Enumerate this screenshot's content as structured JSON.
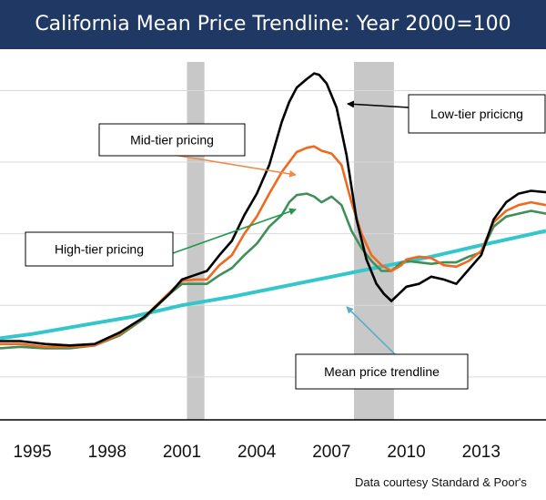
{
  "chart_data": {
    "type": "line",
    "title": "California Mean Price Trendline: Year 2000=100",
    "credit": "Data courtesy Standard & Poor's",
    "x_ticks": [
      "1995",
      "1998",
      "2001",
      "2004",
      "2007",
      "2010",
      "2013"
    ],
    "x_range": [
      1993.7,
      2015.6
    ],
    "y_range": [
      20,
      270
    ],
    "grid": true,
    "shaded_periods": [
      [
        2001.2,
        2001.9
      ],
      [
        2007.9,
        2009.5
      ]
    ],
    "series": [
      {
        "name": "Low-tier pricicng",
        "color": "#000000",
        "points": [
          [
            1993.7,
            75
          ],
          [
            1994.5,
            75
          ],
          [
            1995.5,
            73
          ],
          [
            1996.5,
            72
          ],
          [
            1997.5,
            73
          ],
          [
            1998.5,
            81
          ],
          [
            1999.5,
            92
          ],
          [
            2000.5,
            108
          ],
          [
            2001.0,
            118
          ],
          [
            2001.5,
            121
          ],
          [
            2002.0,
            124
          ],
          [
            2002.5,
            135
          ],
          [
            2003.0,
            145
          ],
          [
            2003.5,
            163
          ],
          [
            2004.0,
            178
          ],
          [
            2004.5,
            198
          ],
          [
            2005.0,
            228
          ],
          [
            2005.3,
            242
          ],
          [
            2005.6,
            252
          ],
          [
            2006.0,
            258
          ],
          [
            2006.3,
            262
          ],
          [
            2006.5,
            261
          ],
          [
            2006.8,
            255
          ],
          [
            2007.2,
            238
          ],
          [
            2007.6,
            205
          ],
          [
            2008.0,
            160
          ],
          [
            2008.4,
            132
          ],
          [
            2008.8,
            115
          ],
          [
            2009.1,
            108
          ],
          [
            2009.4,
            103
          ],
          [
            2009.7,
            108
          ],
          [
            2010.0,
            113
          ],
          [
            2010.5,
            115
          ],
          [
            2011.0,
            120
          ],
          [
            2011.5,
            118
          ],
          [
            2012.0,
            115
          ],
          [
            2012.5,
            125
          ],
          [
            2013.0,
            135
          ],
          [
            2013.5,
            160
          ],
          [
            2014.0,
            172
          ],
          [
            2014.5,
            178
          ],
          [
            2015.0,
            180
          ],
          [
            2015.6,
            179
          ]
        ]
      },
      {
        "name": "Mid-tier pricing",
        "color": "#ef6a1e",
        "points": [
          [
            1993.7,
            73
          ],
          [
            1994.5,
            73
          ],
          [
            1995.5,
            71
          ],
          [
            1996.5,
            71
          ],
          [
            1997.5,
            72
          ],
          [
            1998.5,
            80
          ],
          [
            1999.5,
            92
          ],
          [
            2000.5,
            109
          ],
          [
            2001.0,
            117
          ],
          [
            2001.5,
            118
          ],
          [
            2002.0,
            118
          ],
          [
            2002.5,
            128
          ],
          [
            2003.0,
            135
          ],
          [
            2003.5,
            150
          ],
          [
            2004.0,
            162
          ],
          [
            2004.5,
            178
          ],
          [
            2005.0,
            193
          ],
          [
            2005.3,
            200
          ],
          [
            2005.6,
            207
          ],
          [
            2006.0,
            210
          ],
          [
            2006.3,
            211
          ],
          [
            2006.6,
            208
          ],
          [
            2007.0,
            206
          ],
          [
            2007.4,
            198
          ],
          [
            2007.8,
            172
          ],
          [
            2008.2,
            150
          ],
          [
            2008.6,
            135
          ],
          [
            2009.0,
            128
          ],
          [
            2009.4,
            124
          ],
          [
            2009.8,
            128
          ],
          [
            2010.0,
            132
          ],
          [
            2010.5,
            134
          ],
          [
            2011.0,
            133
          ],
          [
            2011.5,
            128
          ],
          [
            2012.0,
            127
          ],
          [
            2012.5,
            131
          ],
          [
            2013.0,
            138
          ],
          [
            2013.5,
            158
          ],
          [
            2014.0,
            166
          ],
          [
            2014.5,
            170
          ],
          [
            2015.0,
            172
          ],
          [
            2015.6,
            170
          ]
        ]
      },
      {
        "name": "High-tier pricing",
        "color": "#3f8f5a",
        "points": [
          [
            1993.7,
            70
          ],
          [
            1994.5,
            71
          ],
          [
            1995.5,
            70
          ],
          [
            1996.5,
            70
          ],
          [
            1997.5,
            72
          ],
          [
            1998.5,
            79
          ],
          [
            1999.5,
            91
          ],
          [
            2000.5,
            108
          ],
          [
            2001.0,
            115
          ],
          [
            2001.5,
            115
          ],
          [
            2002.0,
            115
          ],
          [
            2002.5,
            121
          ],
          [
            2003.0,
            126
          ],
          [
            2003.5,
            135
          ],
          [
            2004.0,
            143
          ],
          [
            2004.5,
            155
          ],
          [
            2005.0,
            163
          ],
          [
            2005.3,
            172
          ],
          [
            2005.6,
            177
          ],
          [
            2006.0,
            178
          ],
          [
            2006.3,
            176
          ],
          [
            2006.6,
            172
          ],
          [
            2007.0,
            176
          ],
          [
            2007.4,
            170
          ],
          [
            2007.8,
            152
          ],
          [
            2008.2,
            140
          ],
          [
            2008.6,
            131
          ],
          [
            2009.0,
            124
          ],
          [
            2009.4,
            124
          ],
          [
            2009.8,
            130
          ],
          [
            2010.0,
            131
          ],
          [
            2010.5,
            130
          ],
          [
            2011.0,
            129
          ],
          [
            2011.5,
            130
          ],
          [
            2012.0,
            130
          ],
          [
            2012.5,
            134
          ],
          [
            2013.0,
            137
          ],
          [
            2013.5,
            155
          ],
          [
            2014.0,
            162
          ],
          [
            2014.5,
            164
          ],
          [
            2015.0,
            166
          ],
          [
            2015.6,
            164
          ]
        ]
      },
      {
        "name": "Mean price trendline",
        "color": "#33c7cc",
        "points": [
          [
            1993.7,
            77
          ],
          [
            1995,
            80
          ],
          [
            1997,
            86
          ],
          [
            1999,
            92
          ],
          [
            2001,
            100
          ],
          [
            2003,
            106
          ],
          [
            2005,
            113
          ],
          [
            2007,
            120
          ],
          [
            2009,
            127
          ],
          [
            2011,
            134
          ],
          [
            2013,
            142
          ],
          [
            2015.6,
            152
          ]
        ]
      }
    ],
    "annotations": [
      {
        "text": "Low-tier pricicng"
      },
      {
        "text": "Mid-tier pricing"
      },
      {
        "text": "High-tier pricing"
      },
      {
        "text": "Mean price trendline"
      }
    ]
  }
}
